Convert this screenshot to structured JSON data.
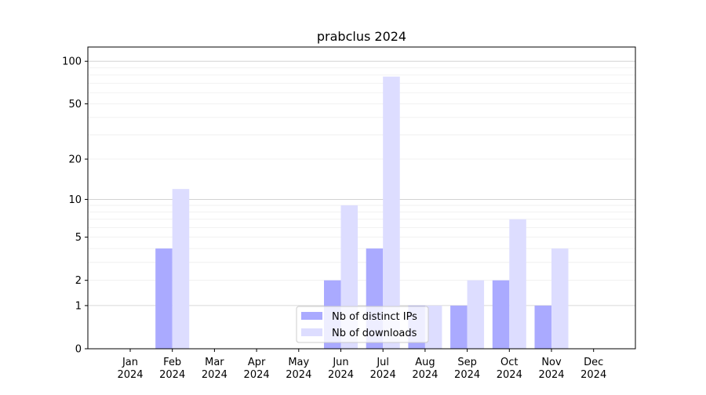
{
  "chart_data": {
    "type": "bar",
    "title": "prabclus 2024",
    "xlabel": "",
    "ylabel": "",
    "yscale": "symlog",
    "ylim": [
      0,
      120
    ],
    "categories": [
      "Jan\n2024",
      "Feb\n2024",
      "Mar\n2024",
      "Apr\n2024",
      "May\n2024",
      "Jun\n2024",
      "Jul\n2024",
      "Aug\n2024",
      "Sep\n2024",
      "Oct\n2024",
      "Nov\n2024",
      "Dec\n2024"
    ],
    "yticks": [
      0,
      1,
      2,
      5,
      10,
      20,
      50,
      100
    ],
    "series": [
      {
        "name": "Nb of distinct IPs",
        "color": "#aaaaff",
        "values": [
          0,
          4,
          0,
          0,
          0,
          2,
          4,
          1,
          1,
          2,
          1,
          0
        ]
      },
      {
        "name": "Nb of downloads",
        "color": "#ddddff",
        "values": [
          0,
          12,
          0,
          0,
          0,
          9,
          78,
          1,
          2,
          7,
          4,
          0
        ]
      }
    ],
    "legend": "bottom-center",
    "grid": true
  }
}
